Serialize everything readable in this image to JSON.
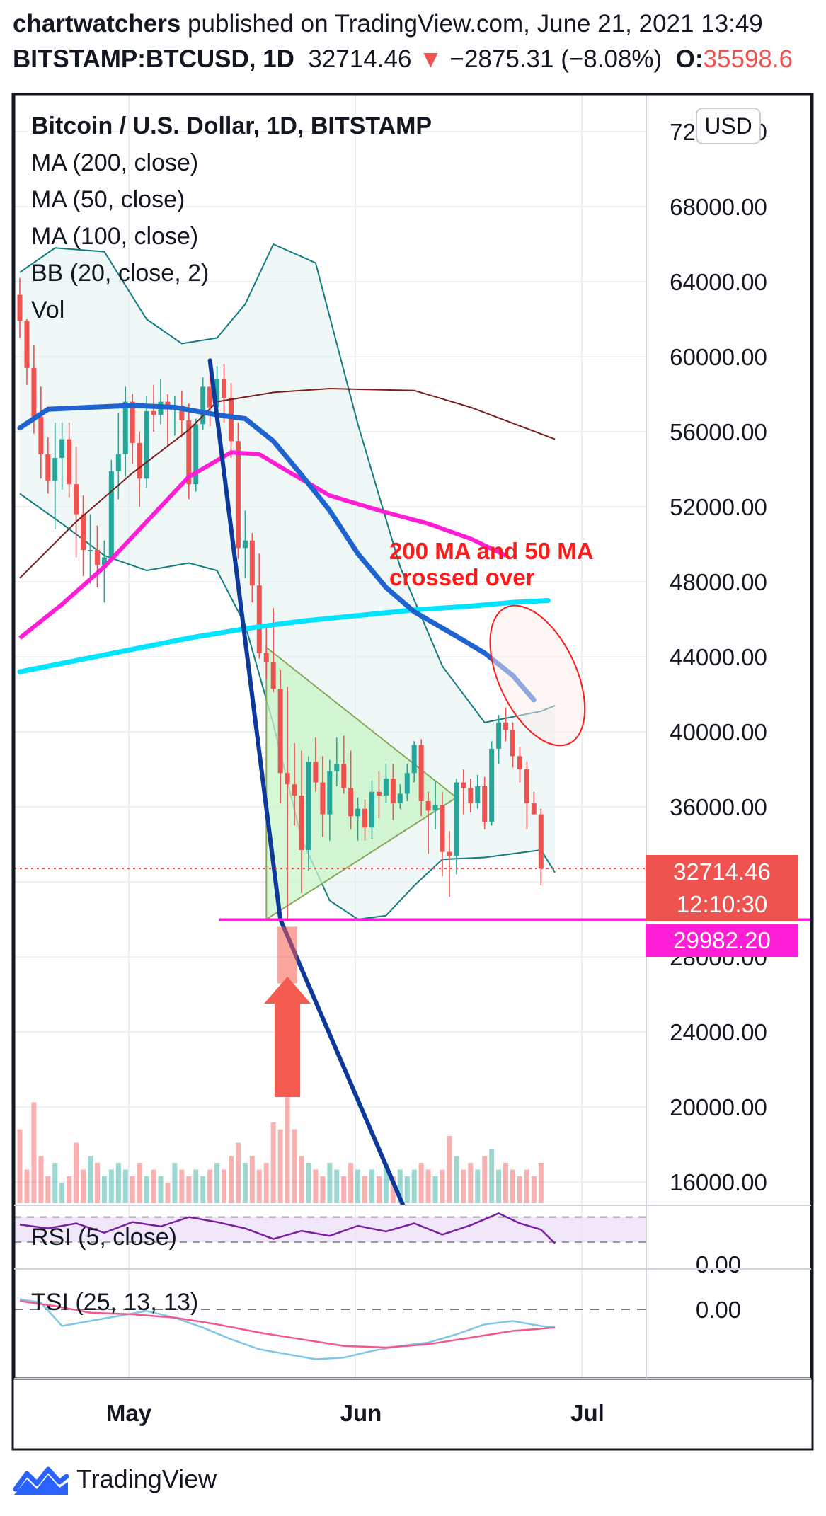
{
  "header": {
    "author": "chartwatchers",
    "published_text": " published on TradingView.com, June 21, 2021 13:49",
    "symbol": "BITSTAMP:BTCUSD, 1D",
    "price": "32714.46",
    "change": "−2875.31 (−8.08%)",
    "open_label": "O:",
    "open_value": "35598.6"
  },
  "legend": {
    "title": "Bitcoin / U.S. Dollar, 1D, BITSTAMP",
    "items": [
      "MA (200, close)",
      "MA (50, close)",
      "MA (100, close)",
      "BB (20, close, 2)",
      "Vol"
    ]
  },
  "currency_button": "USD",
  "price_tags": {
    "last_price": "32714.46",
    "countdown": "12:10:30",
    "support_level": "29982.20"
  },
  "annotation": {
    "line1": "200 MA and 50 MA",
    "line2": "crossed over"
  },
  "rsi_label": "RSI (5, close)",
  "tsi_label": "TSI (25, 13, 13)",
  "footer_brand": "TradingView",
  "colors": {
    "up": "#26a69a",
    "down": "#ef5350",
    "ma200": "#00e5ff",
    "ma50": "#1e63d0",
    "ma100": "#ff1ed6",
    "bb": "#137c80",
    "support": "#ff1ed6",
    "trend_line": "#0d3a9a",
    "triangle_fill": "#c8f5c8",
    "arrow": "#f55b4e",
    "rsi": "#7b1fa2",
    "tsi_fast": "#7ec7e6",
    "tsi_slow": "#f1598e"
  },
  "chart_data": {
    "type": "candlestick",
    "y_ticks": [
      16000,
      20000,
      24000,
      28000,
      32000,
      36000,
      40000,
      44000,
      48000,
      52000,
      56000,
      60000,
      64000,
      68000,
      72000
    ],
    "y_tick_decimals": 2,
    "x_ticks": [
      "May",
      "Jun",
      "Jul"
    ],
    "last_price": 32714.46,
    "support_level": 29982.2,
    "indicator_tick": "0.00",
    "candles": [
      [
        63300,
        64200,
        61000,
        61900
      ],
      [
        61900,
        62000,
        58500,
        59400
      ],
      [
        59400,
        60600,
        55900,
        56800
      ],
      [
        56800,
        58400,
        53500,
        54800
      ],
      [
        54800,
        55700,
        52700,
        53400
      ],
      [
        53400,
        56500,
        50800,
        54600
      ],
      [
        54600,
        56500,
        52900,
        55600
      ],
      [
        55600,
        56500,
        52500,
        53200
      ],
      [
        53200,
        55200,
        49300,
        51600
      ],
      [
        51600,
        52600,
        48300,
        49700
      ],
      [
        49700,
        51600,
        47900,
        49700
      ],
      [
        49700,
        51000,
        47700,
        48900
      ],
      [
        48900,
        50200,
        46900,
        49300
      ],
      [
        49300,
        54500,
        49100,
        53900
      ],
      [
        53900,
        57000,
        52400,
        54800
      ],
      [
        54800,
        58400,
        53600,
        57600
      ],
      [
        57600,
        58000,
        54300,
        55400
      ],
      [
        55400,
        56000,
        52000,
        53500
      ],
      [
        53500,
        57900,
        53000,
        57100
      ],
      [
        57100,
        58500,
        56000,
        56900
      ],
      [
        56900,
        58800,
        56400,
        57600
      ],
      [
        57600,
        58000,
        55200,
        57200
      ],
      [
        57200,
        57900,
        55800,
        57400
      ],
      [
        57400,
        58200,
        55700,
        56600
      ],
      [
        56600,
        57500,
        52400,
        53200
      ],
      [
        53200,
        56700,
        52800,
        56400
      ],
      [
        56400,
        58900,
        56100,
        58400
      ],
      [
        58400,
        59400,
        56300,
        57300
      ],
      [
        57300,
        59500,
        56900,
        58800
      ],
      [
        58800,
        59600,
        56500,
        57800
      ],
      [
        57800,
        58600,
        54600,
        55500
      ],
      [
        55500,
        56500,
        49200,
        49800
      ],
      [
        49800,
        51800,
        48200,
        50200
      ],
      [
        50200,
        50600,
        46900,
        47800
      ],
      [
        47800,
        49500,
        43900,
        44200
      ],
      [
        44200,
        45700,
        42800,
        43700
      ],
      [
        43700,
        46600,
        42100,
        42300
      ],
      [
        42300,
        43300,
        36200,
        37800
      ],
      [
        37800,
        42400,
        30000,
        37200
      ],
      [
        37200,
        39400,
        35000,
        36600
      ],
      [
        36600,
        39000,
        31400,
        33700
      ],
      [
        33700,
        38700,
        32600,
        38400
      ],
      [
        38400,
        39700,
        36800,
        37300
      ],
      [
        37300,
        38700,
        34400,
        35600
      ],
      [
        35600,
        38500,
        34200,
        37900
      ],
      [
        37900,
        39700,
        37100,
        38300
      ],
      [
        38300,
        39800,
        36700,
        37000
      ],
      [
        37000,
        39000,
        34800,
        35500
      ],
      [
        35500,
        36500,
        34200,
        35900
      ],
      [
        35900,
        36400,
        34200,
        34900
      ],
      [
        34900,
        37400,
        34300,
        36800
      ],
      [
        36800,
        37900,
        35400,
        36600
      ],
      [
        36600,
        38300,
        36200,
        37500
      ],
      [
        37500,
        38300,
        35300,
        36200
      ],
      [
        36200,
        37200,
        35900,
        36700
      ],
      [
        36700,
        38300,
        36300,
        37800
      ],
      [
        37800,
        39500,
        37300,
        39300
      ],
      [
        39300,
        39600,
        35500,
        36300
      ],
      [
        36300,
        36800,
        33500,
        35800
      ],
      [
        35800,
        37400,
        34800,
        36100
      ],
      [
        36100,
        36800,
        32300,
        33600
      ],
      [
        33600,
        34700,
        31200,
        33400
      ],
      [
        33400,
        37500,
        32400,
        37300
      ],
      [
        37300,
        38000,
        35600,
        37000
      ],
      [
        37000,
        37500,
        35700,
        36200
      ],
      [
        36200,
        37700,
        35900,
        37100
      ],
      [
        37100,
        37600,
        34800,
        35200
      ],
      [
        35200,
        39500,
        35000,
        39100
      ],
      [
        39100,
        40900,
        38300,
        40500
      ],
      [
        40500,
        41300,
        39500,
        40100
      ],
      [
        40100,
        40500,
        38100,
        38700
      ],
      [
        38700,
        39200,
        37300,
        38000
      ],
      [
        38000,
        38400,
        34800,
        36200
      ],
      [
        36200,
        36800,
        35600,
        35600
      ],
      [
        35600,
        35900,
        31800,
        32700
      ]
    ],
    "ma200": [
      [
        0,
        48200
      ],
      [
        8,
        51200
      ],
      [
        16,
        53800
      ],
      [
        24,
        56100
      ],
      [
        28,
        57600
      ],
      [
        36,
        58100
      ],
      [
        44,
        58300
      ],
      [
        56,
        58200
      ],
      [
        64,
        57300
      ],
      [
        76,
        55600
      ]
    ],
    "ma50": [
      [
        0,
        43200
      ],
      [
        8,
        43800
      ],
      [
        16,
        44400
      ],
      [
        24,
        45000
      ],
      [
        32,
        45500
      ],
      [
        40,
        45900
      ],
      [
        48,
        46200
      ],
      [
        56,
        46500
      ],
      [
        64,
        46700
      ],
      [
        70,
        46900
      ],
      [
        75,
        47000
      ]
    ],
    "ma100": [
      [
        0,
        45000
      ],
      [
        6,
        46800
      ],
      [
        12,
        48800
      ],
      [
        18,
        51200
      ],
      [
        24,
        53600
      ],
      [
        30,
        54900
      ],
      [
        34,
        54800
      ],
      [
        38,
        53900
      ],
      [
        44,
        52600
      ],
      [
        52,
        51700
      ],
      [
        58,
        51100
      ],
      [
        64,
        50300
      ],
      [
        69,
        49400
      ]
    ],
    "bb_upper": [
      [
        0,
        64500
      ],
      [
        5,
        65800
      ],
      [
        12,
        65600
      ],
      [
        18,
        62000
      ],
      [
        23,
        60700
      ],
      [
        28,
        61000
      ],
      [
        32,
        62800
      ],
      [
        36,
        66000
      ],
      [
        42,
        65000
      ],
      [
        48,
        56400
      ],
      [
        54,
        48800
      ],
      [
        60,
        43500
      ],
      [
        66,
        40500
      ],
      [
        70,
        40800
      ],
      [
        74,
        41100
      ],
      [
        76,
        41400
      ]
    ],
    "bb_lower": [
      [
        0,
        52700
      ],
      [
        6,
        51100
      ],
      [
        12,
        49400
      ],
      [
        18,
        48600
      ],
      [
        24,
        49000
      ],
      [
        28,
        48600
      ],
      [
        32,
        45700
      ],
      [
        36,
        40400
      ],
      [
        40,
        34300
      ],
      [
        44,
        31000
      ],
      [
        48,
        30000
      ],
      [
        52,
        30200
      ],
      [
        56,
        31800
      ],
      [
        60,
        33200
      ],
      [
        66,
        33300
      ],
      [
        70,
        33500
      ],
      [
        74,
        33700
      ],
      [
        76,
        32500
      ]
    ],
    "trend_line": [
      [
        27,
        59800
      ],
      [
        37,
        30000
      ],
      [
        61,
        9000
      ]
    ],
    "triangle": [
      [
        35,
        30000
      ],
      [
        35,
        44500
      ],
      [
        62,
        36500
      ]
    ],
    "annotation_ellipse": {
      "center_x": 73.5,
      "center_y": 43000,
      "radius_x": 5.5,
      "radius_y": 4000,
      "rotation_deg": -25
    },
    "volume": [
      0.55,
      0.25,
      0.75,
      0.35,
      0.2,
      0.3,
      0.15,
      0.2,
      0.45,
      0.25,
      0.35,
      0.3,
      0.2,
      0.25,
      0.3,
      0.25,
      0.2,
      0.3,
      0.2,
      0.25,
      0.2,
      0.15,
      0.3,
      0.25,
      0.2,
      0.25,
      0.2,
      0.25,
      0.3,
      0.25,
      0.35,
      0.45,
      0.3,
      0.35,
      0.25,
      0.3,
      0.6,
      0.55,
      1.0,
      0.55,
      0.35,
      0.3,
      0.25,
      0.2,
      0.3,
      0.25,
      0.2,
      0.3,
      0.25,
      0.2,
      0.25,
      0.2,
      0.3,
      0.2,
      0.25,
      0.2,
      0.25,
      0.3,
      0.25,
      0.2,
      0.25,
      0.5,
      0.35,
      0.25,
      0.3,
      0.25,
      0.35,
      0.4,
      0.25,
      0.3,
      0.25,
      0.2,
      0.25,
      0.2,
      0.3
    ],
    "rsi": [
      [
        0,
        58
      ],
      [
        4,
        52
      ],
      [
        8,
        60
      ],
      [
        12,
        45
      ],
      [
        16,
        62
      ],
      [
        20,
        55
      ],
      [
        24,
        70
      ],
      [
        28,
        62
      ],
      [
        32,
        52
      ],
      [
        36,
        35
      ],
      [
        40,
        48
      ],
      [
        44,
        40
      ],
      [
        48,
        56
      ],
      [
        52,
        47
      ],
      [
        56,
        60
      ],
      [
        60,
        42
      ],
      [
        64,
        57
      ],
      [
        68,
        76
      ],
      [
        71,
        60
      ],
      [
        74,
        50
      ],
      [
        76,
        28
      ]
    ],
    "rsi_band": [
      30,
      70
    ],
    "tsi_fast": [
      [
        0,
        6
      ],
      [
        3,
        4
      ],
      [
        6,
        -10
      ],
      [
        10,
        -7
      ],
      [
        14,
        -4
      ],
      [
        18,
        -1
      ],
      [
        22,
        -5
      ],
      [
        26,
        -11
      ],
      [
        30,
        -18
      ],
      [
        34,
        -24
      ],
      [
        38,
        -27
      ],
      [
        42,
        -30
      ],
      [
        46,
        -29
      ],
      [
        50,
        -25
      ],
      [
        54,
        -22
      ],
      [
        58,
        -20
      ],
      [
        62,
        -15
      ],
      [
        66,
        -9
      ],
      [
        70,
        -7
      ],
      [
        74,
        -10
      ],
      [
        76,
        -11
      ]
    ],
    "tsi_slow": [
      [
        0,
        5
      ],
      [
        5,
        2
      ],
      [
        10,
        -2
      ],
      [
        16,
        -3
      ],
      [
        22,
        -5
      ],
      [
        28,
        -9
      ],
      [
        34,
        -14
      ],
      [
        40,
        -18
      ],
      [
        46,
        -22
      ],
      [
        52,
        -23
      ],
      [
        58,
        -21
      ],
      [
        64,
        -17
      ],
      [
        70,
        -13
      ],
      [
        76,
        -11
      ]
    ]
  }
}
